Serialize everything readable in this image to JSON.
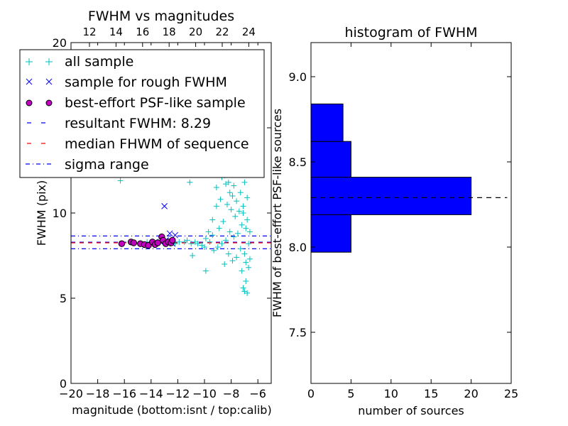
{
  "chart_data": [
    {
      "type": "scatter",
      "title": "FWHM vs magnitudes",
      "xlabel": "magnitude (bottom:isnt / top:calib)",
      "ylabel": "FWHM (pix)",
      "xlim": [
        -20,
        -5
      ],
      "ylim": [
        0,
        20
      ],
      "x_ticks": [
        "−20",
        "−18",
        "−16",
        "−14",
        "−12",
        "−10",
        "−8",
        "−6"
      ],
      "y_ticks": [
        "0",
        "5",
        "10",
        "15",
        "20"
      ],
      "top_axis": {
        "ticks": [
          "12",
          "14",
          "16",
          "18",
          "20",
          "22",
          "24"
        ]
      },
      "legend": {
        "placement": "upper-left",
        "entries": [
          "all sample",
          "sample for rough FWHM",
          "best-effort PSF-like sample",
          "resultant FWHM: 8.29",
          "median FHWM of sequence",
          "sigma range"
        ]
      },
      "series": [
        {
          "name": "all sample",
          "marker": "+",
          "color": "#00bfbf",
          "points": [
            [
              -16.3,
              11.9
            ],
            [
              -11.1,
              11.8
            ],
            [
              -9.9,
              6.6
            ],
            [
              -10.9,
              7.5
            ],
            [
              -11.5,
              8.3
            ],
            [
              -12.9,
              8.2
            ],
            [
              -12.4,
              8.3
            ],
            [
              -9.6,
              19.4
            ],
            [
              -9.2,
              17.9
            ],
            [
              -8.9,
              16.5
            ],
            [
              -8.6,
              15.2
            ],
            [
              -8.3,
              14.3
            ],
            [
              -9.3,
              13.1
            ],
            [
              -9.0,
              12.6
            ],
            [
              -8.7,
              12.1
            ],
            [
              -8.4,
              11.7
            ],
            [
              -8.1,
              11.2
            ],
            [
              -7.8,
              11.6
            ],
            [
              -7.5,
              12.4
            ],
            [
              -7.2,
              12.8
            ],
            [
              -7.4,
              13.6
            ],
            [
              -7.7,
              14.3
            ],
            [
              -8.0,
              13.3
            ],
            [
              -7.0,
              11.8
            ],
            [
              -6.8,
              10.9
            ],
            [
              -7.1,
              10.4
            ],
            [
              -7.4,
              10.1
            ],
            [
              -7.7,
              9.8
            ],
            [
              -8.0,
              10.2
            ],
            [
              -8.3,
              10.5
            ],
            [
              -8.6,
              9.5
            ],
            [
              -8.9,
              9.1
            ],
            [
              -9.1,
              10.4
            ],
            [
              -9.4,
              9.6
            ],
            [
              -7.2,
              9.3
            ],
            [
              -6.9,
              9.1
            ],
            [
              -7.5,
              8.8
            ],
            [
              -7.8,
              8.6
            ],
            [
              -8.1,
              8.9
            ],
            [
              -8.4,
              8.4
            ],
            [
              -8.7,
              8.2
            ],
            [
              -9.0,
              8.0
            ],
            [
              -9.3,
              7.8
            ],
            [
              -9.6,
              8.3
            ],
            [
              -9.9,
              8.5
            ],
            [
              -10.2,
              8.1
            ],
            [
              -10.5,
              8.2
            ],
            [
              -7.3,
              7.9
            ],
            [
              -7.0,
              7.6
            ],
            [
              -7.6,
              7.4
            ],
            [
              -7.9,
              7.2
            ],
            [
              -8.2,
              7.6
            ],
            [
              -8.5,
              7.0
            ],
            [
              -6.9,
              7.1
            ],
            [
              -7.2,
              6.6
            ],
            [
              -6.9,
              6.0
            ],
            [
              -7.1,
              5.6
            ],
            [
              -6.8,
              5.3
            ],
            [
              -7.0,
              5.4
            ],
            [
              -6.7,
              6.8
            ],
            [
              -6.6,
              7.3
            ],
            [
              -6.7,
              8.2
            ],
            [
              -6.6,
              8.9
            ],
            [
              -6.8,
              9.6
            ],
            [
              -7.1,
              10.0
            ],
            [
              -7.3,
              11.2
            ],
            [
              -7.6,
              10.7
            ],
            [
              -7.9,
              11.0
            ],
            [
              -8.2,
              11.8
            ],
            [
              -8.5,
              12.2
            ],
            [
              -8.8,
              10.8
            ],
            [
              -9.1,
              11.5
            ],
            [
              -9.4,
              8.7
            ],
            [
              -9.7,
              8.9
            ],
            [
              -10.0,
              8.0
            ],
            [
              -10.7,
              8.3
            ],
            [
              -11.0,
              8.2
            ],
            [
              -11.3,
              8.4
            ],
            [
              -11.9,
              8.3
            ],
            [
              -12.2,
              8.2
            ],
            [
              -13.1,
              8.3
            ],
            [
              -13.6,
              8.2
            ],
            [
              -14.3,
              8.3
            ]
          ]
        },
        {
          "name": "sample for rough FWHM",
          "marker": "x",
          "color": "#0000ff",
          "points": [
            [
              -13.0,
              10.4
            ],
            [
              -12.6,
              8.8
            ],
            [
              -12.2,
              8.7
            ],
            [
              -12.9,
              8.4
            ],
            [
              -13.3,
              8.3
            ],
            [
              -12.4,
              8.2
            ]
          ]
        },
        {
          "name": "best-effort PSF-like sample",
          "marker": "o",
          "color": "#bf00bf",
          "points": [
            [
              -16.2,
              8.2
            ],
            [
              -15.5,
              8.3
            ],
            [
              -15.3,
              8.25
            ],
            [
              -14.8,
              8.2
            ],
            [
              -14.5,
              8.15
            ],
            [
              -14.2,
              8.1
            ],
            [
              -13.9,
              8.3
            ],
            [
              -13.7,
              8.15
            ],
            [
              -13.5,
              8.25
            ],
            [
              -13.2,
              8.6
            ],
            [
              -13.1,
              8.4
            ],
            [
              -12.9,
              8.2
            ],
            [
              -12.7,
              8.3
            ],
            [
              -12.5,
              8.25
            ],
            [
              -12.4,
              8.4
            ]
          ]
        }
      ],
      "reference_lines": [
        {
          "name": "resultant FWHM: 8.29",
          "y": 8.29,
          "color": "#0000ff",
          "style": "dashed"
        },
        {
          "name": "median FHWM of sequence",
          "y": 8.25,
          "color": "#ff0000",
          "style": "dashed"
        },
        {
          "name": "sigma range",
          "y": [
            7.9,
            8.65
          ],
          "color": "#0000ff",
          "style": "dashdot"
        }
      ]
    },
    {
      "type": "bar",
      "orientation": "horizontal",
      "title": "histogram of FWHM",
      "xlabel": "number of sources",
      "ylabel": "FWHM of best-effort PSF-like sources",
      "xlim": [
        0,
        25
      ],
      "ylim": [
        7.2,
        9.2
      ],
      "x_ticks": [
        "0",
        "5",
        "10",
        "15",
        "20",
        "25"
      ],
      "y_ticks": [
        "7.5",
        "8.0",
        "8.5",
        "9.0"
      ],
      "bars": [
        {
          "y0": 7.97,
          "y1": 8.19,
          "value": 5
        },
        {
          "y0": 8.19,
          "y1": 8.41,
          "value": 20
        },
        {
          "y0": 8.41,
          "y1": 8.62,
          "value": 5
        },
        {
          "y0": 8.62,
          "y1": 8.84,
          "value": 4
        }
      ],
      "bar_color": "#0000ff",
      "reference_line": {
        "y": 8.29,
        "style": "dashed",
        "color": "#000000"
      }
    }
  ]
}
